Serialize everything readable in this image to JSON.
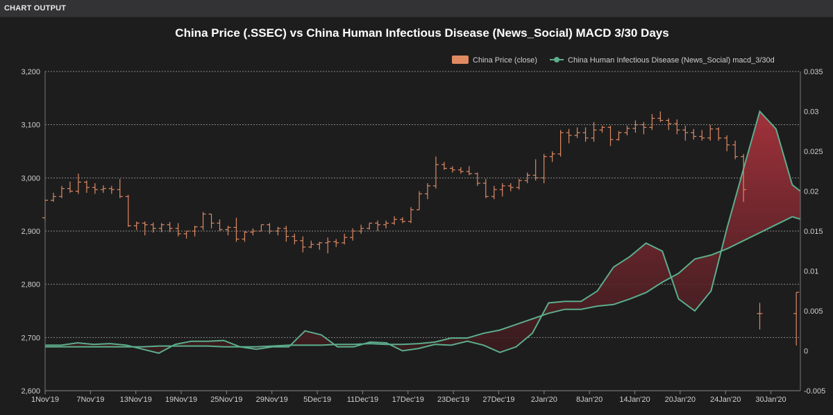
{
  "header": {
    "title": "CHART OUTPUT"
  },
  "chart_data": {
    "type": "ohlc+area",
    "title": "China Price (.SSEC) vs China Human Infectious Disease (News_Social) MACD 3/30 Days",
    "legend": [
      {
        "name": "China Price (close)",
        "color": "#e08a62",
        "marker": "box"
      },
      {
        "name": "China Human Infectious Disease (News_Social) macd_3/30d",
        "color": "#5cae8c",
        "marker": "line-dot"
      }
    ],
    "legend_position": "top-right",
    "grid": true,
    "y_left": {
      "ylim": [
        2600,
        3200
      ],
      "ticks": [
        "2,600",
        "2,700",
        "2,800",
        "2,900",
        "3,000",
        "3,100",
        "3,200"
      ]
    },
    "y_right": {
      "ylim": [
        -0.005,
        0.035
      ],
      "ticks": [
        "-0.005",
        "0",
        "0.005",
        "0.01",
        "0.015",
        "0.02",
        "0.025",
        "0.03",
        "0.035"
      ]
    },
    "x_ticks": [
      "1Nov'19",
      "7Nov'19",
      "13Nov'19",
      "19Nov'19",
      "25Nov'19",
      "29Nov'19",
      "5Dec'19",
      "11Dec'19",
      "17Dec'19",
      "23Dec'19",
      "27Dec'19",
      "2Jan'20",
      "8Jan'20",
      "14Jan'20",
      "20Jan'20",
      "24Jan'20",
      "30Jan'20"
    ],
    "x_range": [
      0,
      93
    ],
    "price_ohlc": [
      [
        2925,
        2960,
        2918,
        2958
      ],
      [
        2958,
        2972,
        2955,
        2965
      ],
      [
        2965,
        2985,
        2962,
        2980
      ],
      [
        2980,
        2993,
        2972,
        2975
      ],
      [
        2975,
        3008,
        2970,
        2992
      ],
      [
        2992,
        2995,
        2972,
        2982
      ],
      [
        2982,
        2990,
        2970,
        2978
      ],
      [
        2978,
        2986,
        2972,
        2980
      ],
      [
        2980,
        2985,
        2970,
        2978
      ],
      [
        2978,
        2998,
        2962,
        2965
      ],
      [
        2965,
        2968,
        2908,
        2910
      ],
      [
        2910,
        2918,
        2902,
        2915
      ],
      [
        2915,
        2918,
        2892,
        2912
      ],
      [
        2912,
        2916,
        2897,
        2905
      ],
      [
        2905,
        2915,
        2898,
        2912
      ],
      [
        2912,
        2917,
        2898,
        2905
      ],
      [
        2905,
        2915,
        2890,
        2895
      ],
      [
        2895,
        2900,
        2886,
        2900
      ],
      [
        2900,
        2910,
        2890,
        2908
      ],
      [
        2908,
        2936,
        2902,
        2932
      ],
      [
        2932,
        2932,
        2905,
        2915
      ],
      [
        2915,
        2922,
        2900,
        2903
      ],
      [
        2903,
        2910,
        2892,
        2907
      ],
      [
        2907,
        2925,
        2880,
        2885
      ],
      [
        2885,
        2900,
        2880,
        2898
      ],
      [
        2898,
        2905,
        2892,
        2900
      ],
      [
        2900,
        2912,
        2900,
        2912
      ],
      [
        2912,
        2915,
        2895,
        2900
      ],
      [
        2900,
        2908,
        2892,
        2905
      ],
      [
        2905,
        2910,
        2880,
        2890
      ],
      [
        2890,
        2895,
        2875,
        2882
      ],
      [
        2882,
        2890,
        2860,
        2870
      ],
      [
        2870,
        2882,
        2868,
        2875
      ],
      [
        2875,
        2880,
        2865,
        2878
      ],
      [
        2878,
        2888,
        2858,
        2880
      ],
      [
        2880,
        2885,
        2870,
        2878
      ],
      [
        2878,
        2895,
        2875,
        2888
      ],
      [
        2888,
        2905,
        2882,
        2900
      ],
      [
        2900,
        2912,
        2895,
        2905
      ],
      [
        2905,
        2915,
        2903,
        2915
      ],
      [
        2915,
        2920,
        2900,
        2912
      ],
      [
        2912,
        2920,
        2905,
        2915
      ],
      [
        2915,
        2928,
        2912,
        2922
      ],
      [
        2922,
        2926,
        2915,
        2918
      ],
      [
        2918,
        2945,
        2915,
        2940
      ],
      [
        2940,
        2975,
        2940,
        2970
      ],
      [
        2970,
        2990,
        2960,
        2985
      ],
      [
        2985,
        3040,
        2980,
        3025
      ],
      [
        3025,
        3030,
        3015,
        3018
      ],
      [
        3018,
        3022,
        3010,
        3015
      ],
      [
        3015,
        3020,
        3008,
        3012
      ],
      [
        3012,
        3022,
        3005,
        3008
      ],
      [
        3008,
        3010,
        2985,
        2990
      ],
      [
        2990,
        2998,
        2962,
        2965
      ],
      [
        2965,
        2985,
        2960,
        2978
      ],
      [
        2978,
        2990,
        2965,
        2985
      ],
      [
        2985,
        2990,
        2975,
        2982
      ],
      [
        2982,
        2998,
        2978,
        2995
      ],
      [
        2995,
        3010,
        2990,
        3005
      ],
      [
        3005,
        3035,
        2995,
        3000
      ],
      [
        3000,
        3045,
        2990,
        3040
      ],
      [
        3040,
        3050,
        3030,
        3045
      ],
      [
        3045,
        3090,
        3040,
        3085
      ],
      [
        3085,
        3092,
        3065,
        3080
      ],
      [
        3080,
        3095,
        3075,
        3085
      ],
      [
        3085,
        3095,
        3068,
        3075
      ],
      [
        3075,
        3105,
        3068,
        3090
      ],
      [
        3090,
        3098,
        3085,
        3095
      ],
      [
        3095,
        3098,
        3060,
        3072
      ],
      [
        3072,
        3088,
        3070,
        3085
      ],
      [
        3085,
        3098,
        3080,
        3093
      ],
      [
        3093,
        3108,
        3085,
        3100
      ],
      [
        3100,
        3105,
        3082,
        3095
      ],
      [
        3095,
        3120,
        3090,
        3112
      ],
      [
        3112,
        3125,
        3105,
        3108
      ],
      [
        3108,
        3112,
        3090,
        3102
      ],
      [
        3102,
        3110,
        3082,
        3090
      ],
      [
        3090,
        3098,
        3070,
        3085
      ],
      [
        3085,
        3092,
        3072,
        3078
      ],
      [
        3078,
        3090,
        3070,
        3075
      ],
      [
        3075,
        3100,
        3070,
        3092
      ],
      [
        3092,
        3095,
        3070,
        3075
      ],
      [
        3075,
        3080,
        3050,
        3062
      ],
      [
        3062,
        3070,
        3035,
        3040
      ],
      [
        3040,
        3045,
        2955,
        2978
      ],
      [
        2745,
        2765,
        2715,
        2745
      ],
      [
        2745,
        2785,
        2685,
        2785
      ]
    ],
    "macd_x": [
      0,
      2,
      4,
      6,
      8,
      10,
      12,
      14,
      16,
      18,
      20,
      22,
      24,
      26,
      28,
      30,
      32,
      34,
      36,
      38,
      40,
      42,
      44,
      46,
      48,
      50,
      52,
      54,
      56,
      58,
      60,
      62,
      64,
      66,
      68,
      70,
      72,
      74,
      76,
      78,
      80,
      82,
      84,
      86,
      88,
      90,
      92,
      93
    ],
    "macd_values": [
      0.0007,
      0.0007,
      0.001,
      0.0008,
      0.0009,
      0.0007,
      0.0002,
      -0.0003,
      0.0008,
      0.0012,
      0.0012,
      0.0013,
      0.0005,
      0.0002,
      0.0005,
      0.0005,
      0.0025,
      0.002,
      0.0005,
      0.0005,
      0.0011,
      0.001,
      0.0,
      0.0003,
      0.0008,
      0.0007,
      0.0012,
      0.0007,
      -0.0002,
      0.0005,
      0.0022,
      0.006,
      0.0062,
      0.0062,
      0.0075,
      0.0105,
      0.0118,
      0.0135,
      0.0125,
      0.0065,
      0.005,
      0.0075,
      0.0155,
      0.0228,
      0.03,
      0.0278,
      0.0208,
      0.02
    ],
    "signal_values": [
      0.0005,
      0.0005,
      0.0005,
      0.0005,
      0.0005,
      0.0005,
      0.0005,
      0.0006,
      0.0006,
      0.0006,
      0.0006,
      0.0005,
      0.0005,
      0.0005,
      0.0006,
      0.0007,
      0.0007,
      0.0007,
      0.0008,
      0.0008,
      0.0009,
      0.0008,
      0.0008,
      0.0009,
      0.0011,
      0.0016,
      0.0016,
      0.0022,
      0.0026,
      0.0033,
      0.004,
      0.0047,
      0.0052,
      0.0052,
      0.0056,
      0.0058,
      0.0065,
      0.0073,
      0.0086,
      0.0097,
      0.0115,
      0.012,
      0.0128,
      0.0138,
      0.0148,
      0.0158,
      0.0168,
      0.0165
    ]
  }
}
